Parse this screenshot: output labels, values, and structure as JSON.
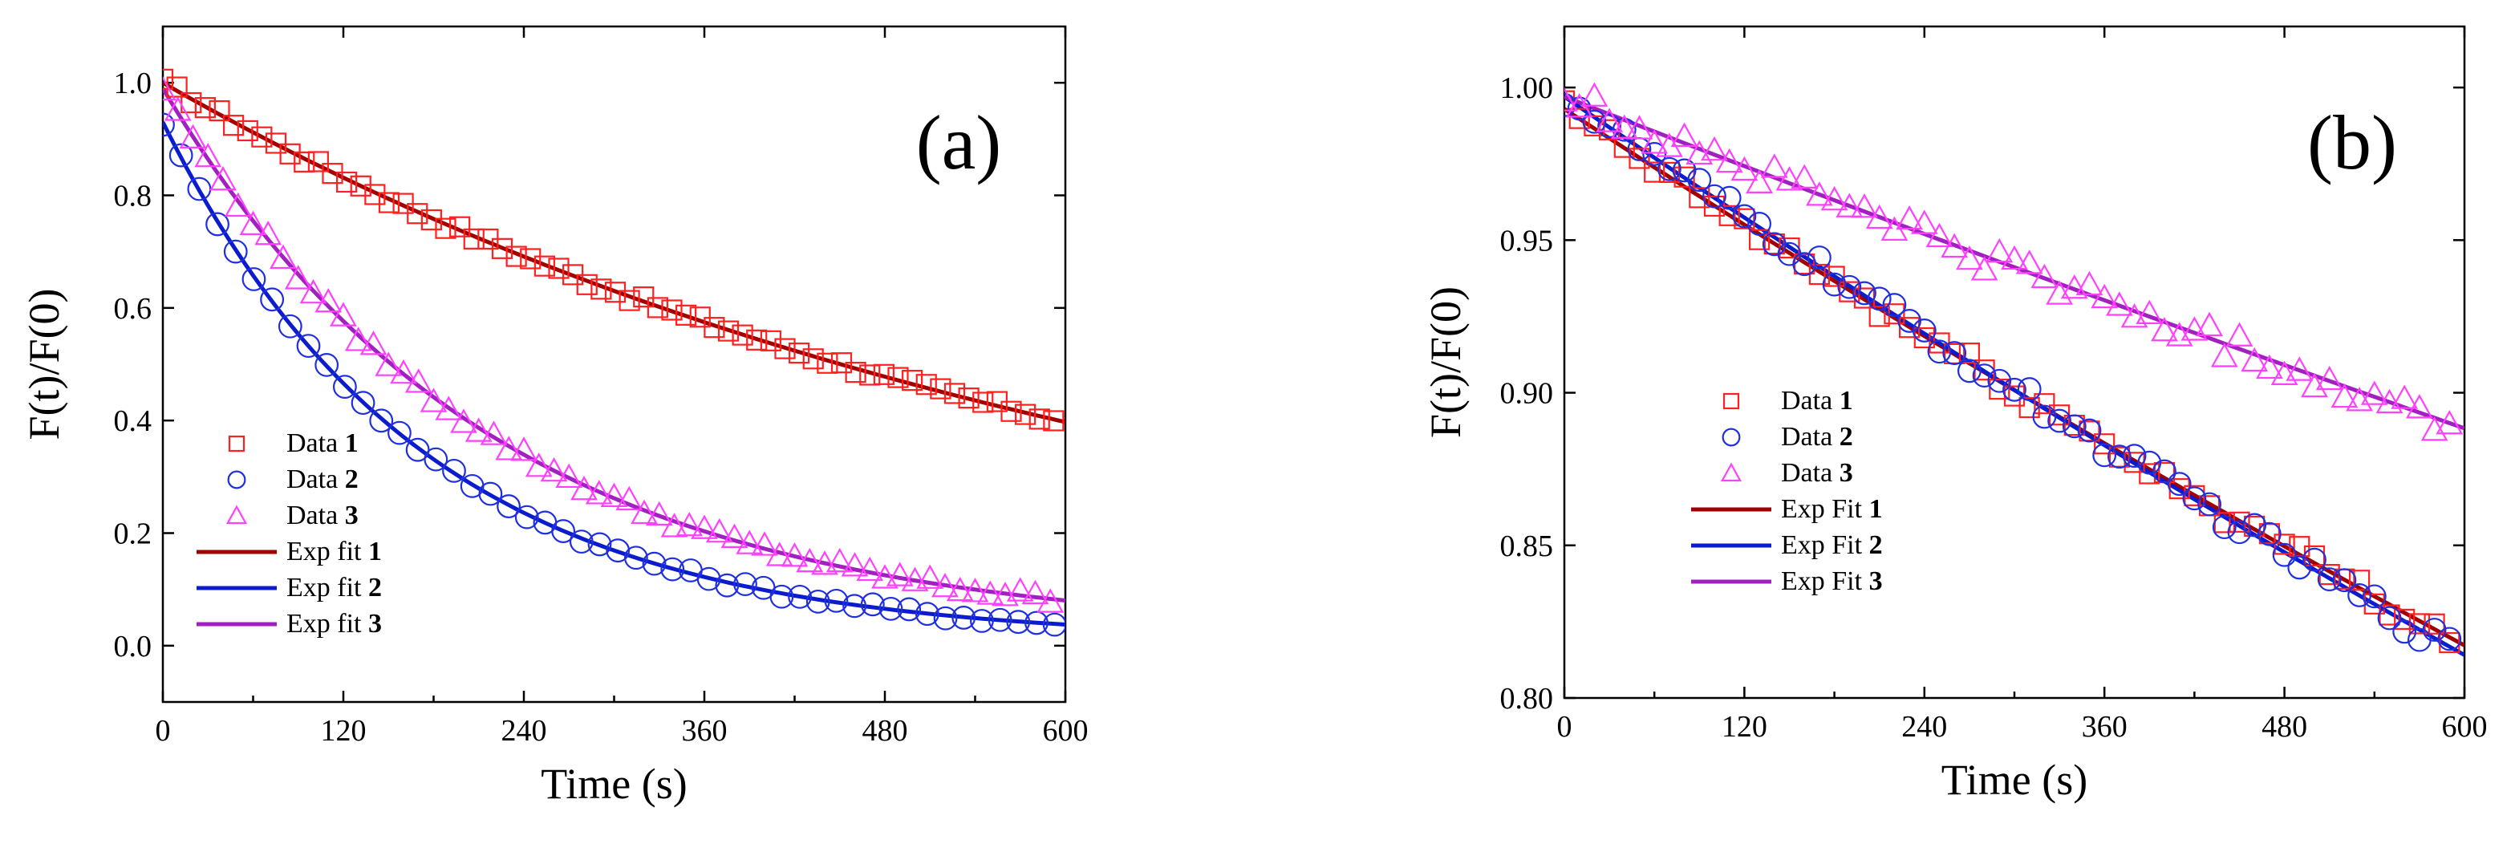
{
  "chart_data": [
    {
      "type": "scatter",
      "panel_label": "(a)",
      "xlabel": "Time (s)",
      "ylabel": "F(t)/F(0)",
      "xlim": [
        0,
        600
      ],
      "ylim": [
        -0.1,
        1.1
      ],
      "xticks": [
        "0",
        "120",
        "240",
        "360",
        "480",
        "600"
      ],
      "yticks": [
        "0.0",
        "0.2",
        "0.4",
        "0.6",
        "0.8",
        "1.0"
      ],
      "legend_position": "bottom-left",
      "series": [
        {
          "name_prefix": "Data",
          "name_bold": "1",
          "kind": "data",
          "marker": "square",
          "color": "#ff2020",
          "fit": {
            "a": 1.0,
            "tau": 650,
            "c": 0.0
          },
          "samples": 64,
          "x_step": 9.4
        },
        {
          "name_prefix": "Data",
          "name_bold": "2",
          "kind": "data",
          "marker": "circle",
          "color": "#1f2fe0",
          "fit": {
            "a": 0.92,
            "tau": 171,
            "c": 0.01
          },
          "samples": 50,
          "x_step": 12.1
        },
        {
          "name_prefix": "Data",
          "name_bold": "3",
          "kind": "data",
          "marker": "triangle",
          "color": "#ff40ff",
          "fit": {
            "a": 0.97,
            "tau": 216,
            "c": 0.02
          },
          "samples": 60,
          "x_step": 10.0
        },
        {
          "name_prefix": "Exp fit",
          "name_bold": "1",
          "kind": "fit",
          "color": "#a00000",
          "fit": {
            "a": 1.0,
            "tau": 650,
            "c": 0.0
          }
        },
        {
          "name_prefix": "Exp fit",
          "name_bold": "2",
          "kind": "fit",
          "color": "#0a1ccc",
          "fit": {
            "a": 0.92,
            "tau": 171,
            "c": 0.01
          }
        },
        {
          "name_prefix": "Exp fit",
          "name_bold": "3",
          "kind": "fit",
          "color": "#a020c0",
          "fit": {
            "a": 0.97,
            "tau": 216,
            "c": 0.02
          }
        }
      ]
    },
    {
      "type": "scatter",
      "panel_label": "(b)",
      "xlabel": "Time (s)",
      "ylabel": "F(t)/F(0)",
      "xlim": [
        0,
        600
      ],
      "ylim": [
        0.8,
        1.02
      ],
      "xticks": [
        "0",
        "120",
        "240",
        "360",
        "480",
        "600"
      ],
      "yticks": [
        "0.80",
        "0.85",
        "0.90",
        "0.95",
        "1.00"
      ],
      "legend_position": "bottom-left",
      "series": [
        {
          "name_prefix": "Data",
          "name_bold": "1",
          "kind": "data",
          "marker": "square",
          "color": "#ff2020",
          "fit": {
            "a": 0.993,
            "tau": 3080,
            "c": 0.0
          },
          "samples": 60,
          "x_step": 10.0
        },
        {
          "name_prefix": "Data",
          "name_bold": "2",
          "kind": "data",
          "marker": "circle",
          "color": "#1f2fe0",
          "fit": {
            "a": 0.997,
            "tau": 2960,
            "c": 0.0
          },
          "samples": 60,
          "x_step": 10.0
        },
        {
          "name_prefix": "Data",
          "name_bold": "3",
          "kind": "data",
          "marker": "triangle",
          "color": "#ff40ff",
          "fit": {
            "a": 0.997,
            "tau": 5200,
            "c": 0.0
          },
          "samples": 60,
          "x_step": 10.0
        },
        {
          "name_prefix": "Exp Fit",
          "name_bold": "1",
          "kind": "fit",
          "color": "#a00000",
          "fit": {
            "a": 0.993,
            "tau": 3080,
            "c": 0.0
          }
        },
        {
          "name_prefix": "Exp Fit",
          "name_bold": "2",
          "kind": "fit",
          "color": "#0a1ccc",
          "fit": {
            "a": 0.997,
            "tau": 2960,
            "c": 0.0
          }
        },
        {
          "name_prefix": "Exp Fit",
          "name_bold": "3",
          "kind": "fit",
          "color": "#a020c0",
          "fit": {
            "a": 0.997,
            "tau": 5200,
            "c": 0.0
          }
        }
      ]
    }
  ]
}
